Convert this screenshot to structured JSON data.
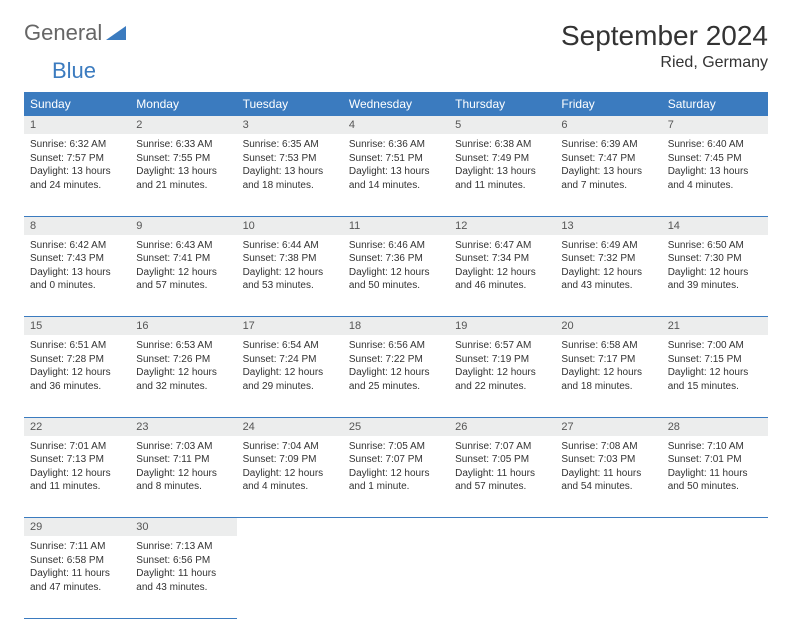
{
  "logo": {
    "general": "General",
    "blue": "Blue"
  },
  "header": {
    "title": "September 2024",
    "location": "Ried, Germany"
  },
  "colors": {
    "accent": "#3b7bbf",
    "dayrow_bg": "#eceded"
  },
  "weekdays": [
    "Sunday",
    "Monday",
    "Tuesday",
    "Wednesday",
    "Thursday",
    "Friday",
    "Saturday"
  ],
  "weeks": [
    {
      "nums": [
        "1",
        "2",
        "3",
        "4",
        "5",
        "6",
        "7"
      ],
      "cells": [
        {
          "sunrise": "Sunrise: 6:32 AM",
          "sunset": "Sunset: 7:57 PM",
          "day1": "Daylight: 13 hours",
          "day2": "and 24 minutes."
        },
        {
          "sunrise": "Sunrise: 6:33 AM",
          "sunset": "Sunset: 7:55 PM",
          "day1": "Daylight: 13 hours",
          "day2": "and 21 minutes."
        },
        {
          "sunrise": "Sunrise: 6:35 AM",
          "sunset": "Sunset: 7:53 PM",
          "day1": "Daylight: 13 hours",
          "day2": "and 18 minutes."
        },
        {
          "sunrise": "Sunrise: 6:36 AM",
          "sunset": "Sunset: 7:51 PM",
          "day1": "Daylight: 13 hours",
          "day2": "and 14 minutes."
        },
        {
          "sunrise": "Sunrise: 6:38 AM",
          "sunset": "Sunset: 7:49 PM",
          "day1": "Daylight: 13 hours",
          "day2": "and 11 minutes."
        },
        {
          "sunrise": "Sunrise: 6:39 AM",
          "sunset": "Sunset: 7:47 PM",
          "day1": "Daylight: 13 hours",
          "day2": "and 7 minutes."
        },
        {
          "sunrise": "Sunrise: 6:40 AM",
          "sunset": "Sunset: 7:45 PM",
          "day1": "Daylight: 13 hours",
          "day2": "and 4 minutes."
        }
      ]
    },
    {
      "nums": [
        "8",
        "9",
        "10",
        "11",
        "12",
        "13",
        "14"
      ],
      "cells": [
        {
          "sunrise": "Sunrise: 6:42 AM",
          "sunset": "Sunset: 7:43 PM",
          "day1": "Daylight: 13 hours",
          "day2": "and 0 minutes."
        },
        {
          "sunrise": "Sunrise: 6:43 AM",
          "sunset": "Sunset: 7:41 PM",
          "day1": "Daylight: 12 hours",
          "day2": "and 57 minutes."
        },
        {
          "sunrise": "Sunrise: 6:44 AM",
          "sunset": "Sunset: 7:38 PM",
          "day1": "Daylight: 12 hours",
          "day2": "and 53 minutes."
        },
        {
          "sunrise": "Sunrise: 6:46 AM",
          "sunset": "Sunset: 7:36 PM",
          "day1": "Daylight: 12 hours",
          "day2": "and 50 minutes."
        },
        {
          "sunrise": "Sunrise: 6:47 AM",
          "sunset": "Sunset: 7:34 PM",
          "day1": "Daylight: 12 hours",
          "day2": "and 46 minutes."
        },
        {
          "sunrise": "Sunrise: 6:49 AM",
          "sunset": "Sunset: 7:32 PM",
          "day1": "Daylight: 12 hours",
          "day2": "and 43 minutes."
        },
        {
          "sunrise": "Sunrise: 6:50 AM",
          "sunset": "Sunset: 7:30 PM",
          "day1": "Daylight: 12 hours",
          "day2": "and 39 minutes."
        }
      ]
    },
    {
      "nums": [
        "15",
        "16",
        "17",
        "18",
        "19",
        "20",
        "21"
      ],
      "cells": [
        {
          "sunrise": "Sunrise: 6:51 AM",
          "sunset": "Sunset: 7:28 PM",
          "day1": "Daylight: 12 hours",
          "day2": "and 36 minutes."
        },
        {
          "sunrise": "Sunrise: 6:53 AM",
          "sunset": "Sunset: 7:26 PM",
          "day1": "Daylight: 12 hours",
          "day2": "and 32 minutes."
        },
        {
          "sunrise": "Sunrise: 6:54 AM",
          "sunset": "Sunset: 7:24 PM",
          "day1": "Daylight: 12 hours",
          "day2": "and 29 minutes."
        },
        {
          "sunrise": "Sunrise: 6:56 AM",
          "sunset": "Sunset: 7:22 PM",
          "day1": "Daylight: 12 hours",
          "day2": "and 25 minutes."
        },
        {
          "sunrise": "Sunrise: 6:57 AM",
          "sunset": "Sunset: 7:19 PM",
          "day1": "Daylight: 12 hours",
          "day2": "and 22 minutes."
        },
        {
          "sunrise": "Sunrise: 6:58 AM",
          "sunset": "Sunset: 7:17 PM",
          "day1": "Daylight: 12 hours",
          "day2": "and 18 minutes."
        },
        {
          "sunrise": "Sunrise: 7:00 AM",
          "sunset": "Sunset: 7:15 PM",
          "day1": "Daylight: 12 hours",
          "day2": "and 15 minutes."
        }
      ]
    },
    {
      "nums": [
        "22",
        "23",
        "24",
        "25",
        "26",
        "27",
        "28"
      ],
      "cells": [
        {
          "sunrise": "Sunrise: 7:01 AM",
          "sunset": "Sunset: 7:13 PM",
          "day1": "Daylight: 12 hours",
          "day2": "and 11 minutes."
        },
        {
          "sunrise": "Sunrise: 7:03 AM",
          "sunset": "Sunset: 7:11 PM",
          "day1": "Daylight: 12 hours",
          "day2": "and 8 minutes."
        },
        {
          "sunrise": "Sunrise: 7:04 AM",
          "sunset": "Sunset: 7:09 PM",
          "day1": "Daylight: 12 hours",
          "day2": "and 4 minutes."
        },
        {
          "sunrise": "Sunrise: 7:05 AM",
          "sunset": "Sunset: 7:07 PM",
          "day1": "Daylight: 12 hours",
          "day2": "and 1 minute."
        },
        {
          "sunrise": "Sunrise: 7:07 AM",
          "sunset": "Sunset: 7:05 PM",
          "day1": "Daylight: 11 hours",
          "day2": "and 57 minutes."
        },
        {
          "sunrise": "Sunrise: 7:08 AM",
          "sunset": "Sunset: 7:03 PM",
          "day1": "Daylight: 11 hours",
          "day2": "and 54 minutes."
        },
        {
          "sunrise": "Sunrise: 7:10 AM",
          "sunset": "Sunset: 7:01 PM",
          "day1": "Daylight: 11 hours",
          "day2": "and 50 minutes."
        }
      ]
    },
    {
      "nums": [
        "29",
        "30",
        "",
        "",
        "",
        "",
        ""
      ],
      "cells": [
        {
          "sunrise": "Sunrise: 7:11 AM",
          "sunset": "Sunset: 6:58 PM",
          "day1": "Daylight: 11 hours",
          "day2": "and 47 minutes."
        },
        {
          "sunrise": "Sunrise: 7:13 AM",
          "sunset": "Sunset: 6:56 PM",
          "day1": "Daylight: 11 hours",
          "day2": "and 43 minutes."
        },
        null,
        null,
        null,
        null,
        null
      ]
    }
  ]
}
